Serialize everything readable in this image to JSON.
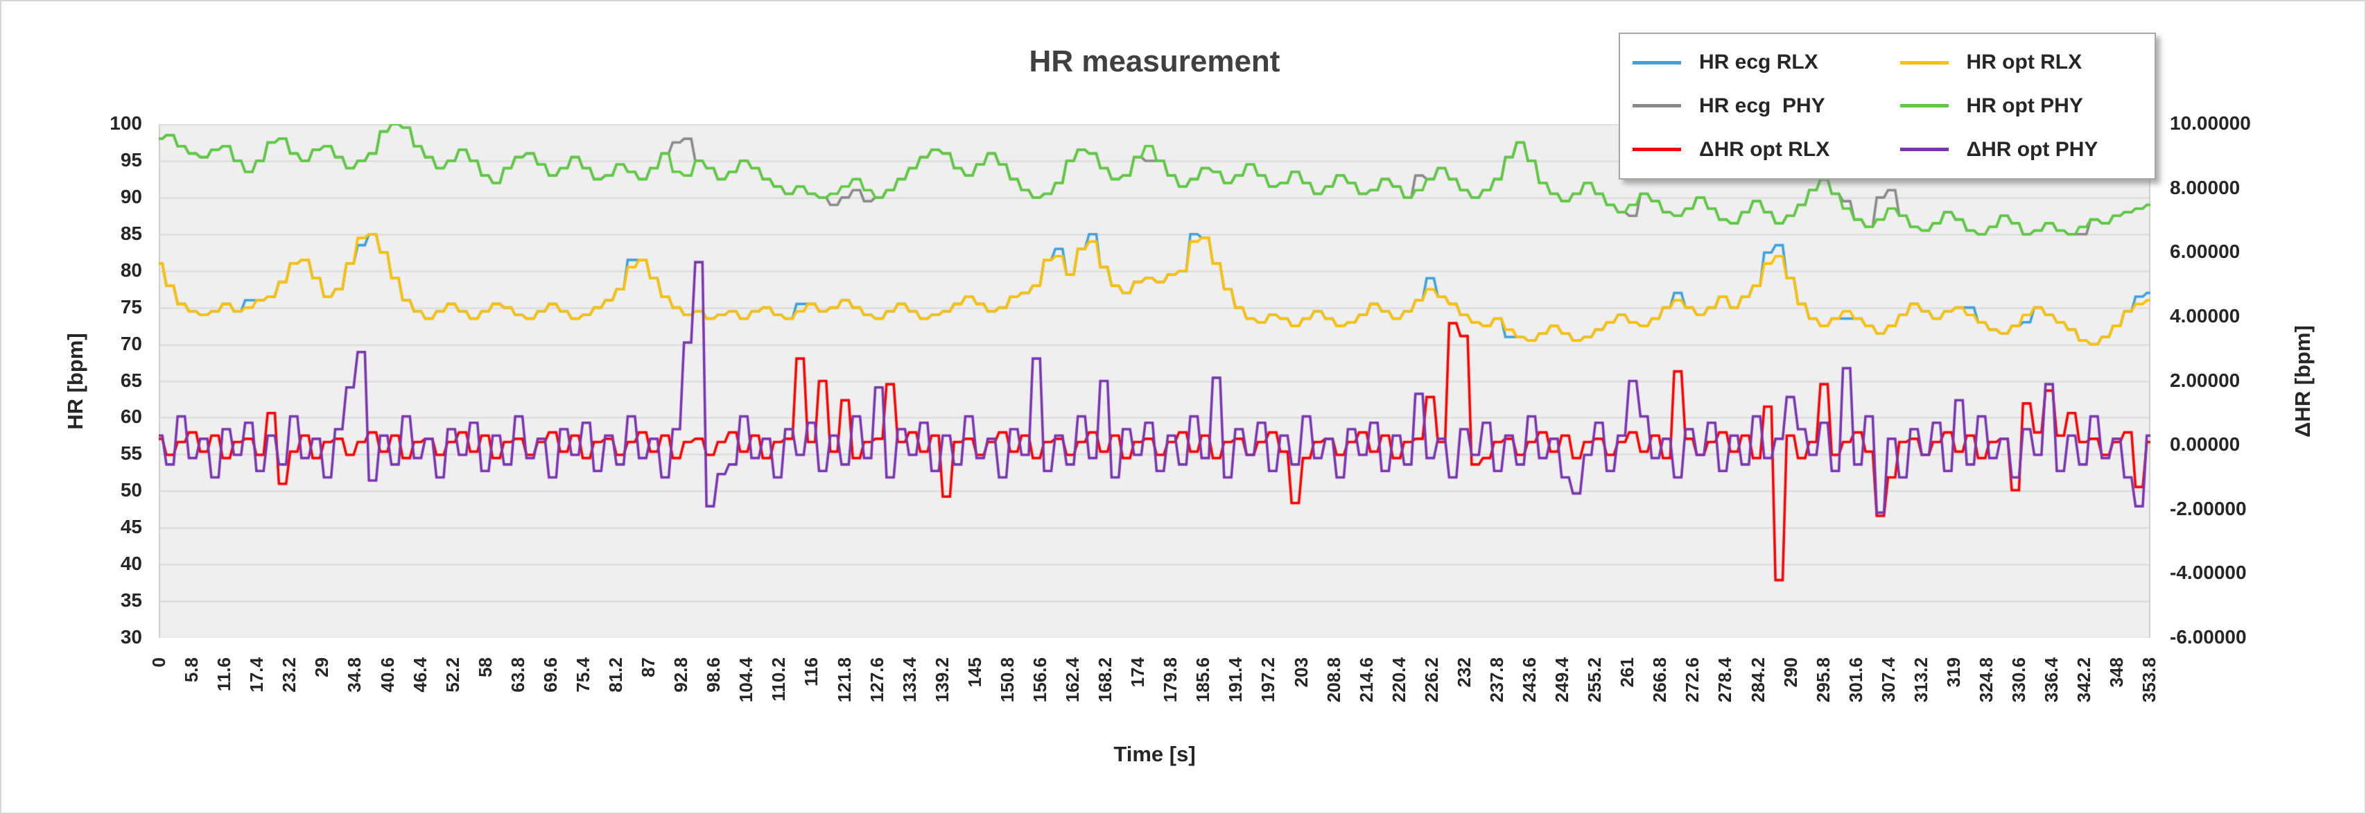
{
  "colors": {
    "plot_bg": "#efefef",
    "gridline": "#d9d9d9",
    "axis_edge": "#d0d0d0",
    "tick_text": "#262626",
    "title_text": "#404040"
  },
  "chart_data": {
    "type": "line",
    "title": "HR measurement",
    "xlabel": "Time [s]",
    "ylabel_left": "HR [bpm]",
    "ylabel_right": "ΔHR [bpm]",
    "x_range": [
      0,
      354
    ],
    "x_start": 0,
    "x_step": 2,
    "y_left_range": [
      30,
      100
    ],
    "y_right_range": [
      -6,
      10
    ],
    "grid": true,
    "legend_position": "top-right",
    "y_left_ticks": [
      100,
      95,
      90,
      85,
      80,
      75,
      70,
      65,
      60,
      55,
      50,
      45,
      40,
      35,
      30
    ],
    "y_right_ticks": [
      "10.00000",
      "8.00000",
      "6.00000",
      "4.00000",
      "2.00000",
      "0.00000",
      "-2.00000",
      "-4.00000",
      "-6.00000"
    ],
    "x_ticks": [
      "0",
      "5.8",
      "11.6",
      "17.4",
      "23.2",
      "29",
      "34.8",
      "40.6",
      "46.4",
      "52.2",
      "58",
      "63.8",
      "69.6",
      "75.4",
      "81.2",
      "87",
      "92.8",
      "98.6",
      "104.4",
      "110.2",
      "116",
      "121.8",
      "127.6",
      "133.4",
      "139.2",
      "145",
      "150.8",
      "156.6",
      "162.4",
      "168.2",
      "174",
      "179.8",
      "185.6",
      "191.4",
      "197.2",
      "203",
      "208.8",
      "214.6",
      "220.4",
      "226.2",
      "232",
      "237.8",
      "243.6",
      "249.4",
      "255.2",
      "261",
      "266.8",
      "272.6",
      "278.4",
      "284.2",
      "290",
      "295.8",
      "301.6",
      "307.4",
      "313.2",
      "319",
      "324.8",
      "330.6",
      "336.4",
      "342.2",
      "348",
      "353.8"
    ],
    "series": [
      {
        "name": "HR ecg RLX",
        "color": "#3da2dc",
        "axis": "left",
        "values": [
          81,
          78,
          75.5,
          74.5,
          74,
          74.5,
          75.5,
          74.5,
          76,
          76,
          76.5,
          78.5,
          81,
          81.5,
          79,
          76.5,
          77.5,
          81,
          83.5,
          85,
          82.5,
          79,
          76,
          74.5,
          73.5,
          74.5,
          75.5,
          74.5,
          73.5,
          74.5,
          75.5,
          75,
          74,
          73.5,
          74.5,
          75.5,
          74.5,
          73.5,
          74,
          75,
          76,
          77.5,
          81.5,
          81.5,
          79,
          76.5,
          75,
          74,
          74.5,
          73.5,
          74,
          74.5,
          73.5,
          74.5,
          75,
          74,
          73.5,
          75.5,
          75.5,
          74.5,
          75,
          76,
          75,
          74,
          73.5,
          74.5,
          75.5,
          74.5,
          73.5,
          74,
          74.5,
          75.5,
          76.5,
          75.5,
          74.5,
          75,
          76.5,
          77,
          78,
          81.5,
          83,
          79.5,
          83,
          85,
          80.5,
          78,
          77,
          78.5,
          79,
          78.5,
          79.5,
          80,
          85,
          84.5,
          81,
          77.5,
          75,
          73.5,
          73,
          74,
          73.5,
          72.5,
          73.5,
          74.5,
          73.5,
          72.5,
          73,
          74,
          75.5,
          74.5,
          73.5,
          74.5,
          76,
          79,
          76.5,
          75.5,
          74,
          73,
          72.5,
          73.5,
          71,
          71,
          70.5,
          71.5,
          72.5,
          71.5,
          70.5,
          71,
          72,
          73,
          74,
          73,
          72.5,
          73.5,
          75,
          77,
          75,
          74,
          75,
          76.5,
          75,
          76.5,
          78,
          82.5,
          83.5,
          79,
          75.5,
          73.5,
          72.5,
          73.5,
          73.5,
          73.5,
          72.5,
          71.5,
          72.5,
          74,
          75.5,
          74.5,
          73.5,
          74.5,
          75,
          75,
          73,
          72,
          71.5,
          72.5,
          73,
          75,
          74,
          73,
          72,
          70.5,
          70,
          71,
          72.5,
          74.5,
          76.5,
          77
        ]
      },
      {
        "name": "HR opt RLX",
        "color": "#ffc000",
        "axis": "left",
        "values": [
          81,
          78,
          75.5,
          74.5,
          74,
          74.5,
          75.5,
          74.5,
          75,
          76,
          76.5,
          78.5,
          81,
          81.5,
          79,
          76.5,
          77.5,
          81,
          84.5,
          85,
          82.5,
          79,
          76,
          74.5,
          73.5,
          74.5,
          75.5,
          74.5,
          73.5,
          74.5,
          75.5,
          75,
          74,
          73.5,
          74.5,
          75.5,
          74.5,
          73.5,
          74,
          75,
          76,
          77.5,
          80.5,
          81.5,
          79,
          76.5,
          75,
          74,
          74.5,
          73.5,
          74,
          74.5,
          73.5,
          74.5,
          75,
          74,
          73.5,
          74.5,
          75.5,
          74.5,
          75,
          76,
          75,
          74,
          73.5,
          74.5,
          75.5,
          74.5,
          73.5,
          74,
          74.5,
          75.5,
          76.5,
          75.5,
          74.5,
          75,
          76.5,
          77,
          78,
          81.5,
          82,
          79.5,
          83,
          84,
          80.5,
          78,
          77,
          78.5,
          79,
          78.5,
          79.5,
          80,
          84,
          84.5,
          81,
          77.5,
          75,
          73.5,
          73,
          74,
          73.5,
          72.5,
          73.5,
          74.5,
          73.5,
          72.5,
          73,
          74,
          75.5,
          74.5,
          73.5,
          74.5,
          76,
          77.5,
          76.5,
          75.5,
          74,
          73,
          72.5,
          73.5,
          72,
          71,
          70.5,
          71.5,
          72.5,
          71.5,
          70.5,
          71,
          72,
          73,
          74,
          73,
          72.5,
          73.5,
          75,
          76,
          75,
          74,
          75,
          76.5,
          75,
          76.5,
          78,
          81,
          82,
          79,
          75.5,
          73.5,
          72.5,
          73.5,
          74.5,
          73.5,
          72.5,
          71.5,
          72.5,
          74,
          75.5,
          74.5,
          73.5,
          74.5,
          75,
          74,
          73,
          72,
          71.5,
          72.5,
          74,
          75,
          74,
          73,
          72,
          70.5,
          70,
          71,
          72.5,
          74.5,
          75.5,
          76
        ]
      },
      {
        "name": "HR ecg  PHY",
        "color": "#8a8a8a",
        "axis": "left",
        "values": [
          98,
          98.5,
          97,
          96,
          95.5,
          96.5,
          97,
          95,
          93.5,
          95,
          97.5,
          98,
          96,
          95,
          96.5,
          97,
          95.5,
          94,
          95,
          96,
          99,
          100,
          99.5,
          97,
          95.5,
          94,
          95,
          96.5,
          95,
          93,
          92,
          94,
          95.5,
          96,
          94.5,
          93,
          94,
          95.5,
          94,
          92.5,
          93,
          94.5,
          93.5,
          92.5,
          94,
          96,
          97.5,
          98,
          95,
          94,
          92.5,
          93.5,
          95,
          94,
          92.5,
          91.5,
          90.5,
          91.5,
          90.5,
          90,
          89,
          90,
          91,
          89.5,
          90,
          91,
          92.5,
          94,
          95.5,
          96.5,
          96,
          94,
          93,
          94.5,
          96,
          94.5,
          92.5,
          91,
          90,
          90.5,
          92,
          95,
          96.5,
          96,
          94,
          92.5,
          93,
          95.5,
          95,
          95,
          93,
          91.5,
          92.5,
          94,
          93.5,
          92,
          93,
          94.5,
          93,
          91.5,
          92,
          93.5,
          92,
          90.5,
          91.5,
          93,
          92,
          90.5,
          91,
          92.5,
          91.5,
          90,
          93,
          92.5,
          94,
          92.5,
          91,
          90,
          91,
          92.5,
          95.5,
          97.5,
          95,
          92,
          90.5,
          89.5,
          90.5,
          92,
          90.5,
          89,
          88,
          87.5,
          90.5,
          89.5,
          88,
          87.5,
          88.5,
          90,
          88.5,
          87,
          86.5,
          88,
          89.5,
          88,
          86.5,
          87.5,
          89,
          91,
          92.5,
          90.5,
          89.5,
          87,
          86,
          90,
          91,
          87.5,
          86,
          85.5,
          86.5,
          88,
          87,
          85.5,
          85,
          86,
          87.5,
          86.5,
          85,
          85.5,
          86.5,
          85.5,
          85,
          85,
          87,
          86.5,
          87.5,
          88,
          88.5,
          89
        ]
      },
      {
        "name": "HR opt PHY",
        "color": "#5ccb3f",
        "axis": "left",
        "values": [
          98,
          98.5,
          97,
          96,
          95.5,
          96.5,
          97,
          95,
          93.5,
          95,
          97.5,
          98,
          96,
          95,
          96.5,
          97,
          95.5,
          94,
          95,
          96,
          99,
          100,
          99.5,
          97,
          95.5,
          94,
          95,
          96.5,
          95,
          93,
          92,
          94,
          95.5,
          96,
          94.5,
          93,
          94,
          95.5,
          94,
          92.5,
          93,
          94.5,
          93.5,
          92.5,
          94,
          96,
          93.5,
          93,
          95,
          94,
          92.5,
          93.5,
          95,
          94,
          92.5,
          91.5,
          90.5,
          91.5,
          90.5,
          90,
          90.5,
          91.5,
          92.5,
          91,
          90,
          91,
          92.5,
          94,
          95.5,
          96.5,
          96,
          94,
          93,
          94.5,
          96,
          94.5,
          92.5,
          91,
          90,
          90.5,
          92,
          95,
          96.5,
          96,
          94,
          92.5,
          93,
          95.5,
          97,
          95,
          93,
          91.5,
          92.5,
          94,
          93.5,
          92,
          93,
          94.5,
          93,
          91.5,
          92,
          93.5,
          92,
          90.5,
          91.5,
          93,
          92,
          90.5,
          91,
          92.5,
          91.5,
          90,
          91,
          92.5,
          94,
          92.5,
          91,
          90,
          91,
          92.5,
          95.5,
          97.5,
          95,
          92,
          90.5,
          89.5,
          90.5,
          92,
          90.5,
          89,
          88,
          89,
          90.5,
          89.5,
          88,
          87.5,
          88.5,
          90,
          88.5,
          87,
          86.5,
          88,
          89.5,
          88,
          86.5,
          87.5,
          89,
          91,
          92.5,
          90.5,
          88.5,
          87,
          86,
          87,
          88.5,
          87.5,
          86,
          85.5,
          86.5,
          88,
          87,
          85.5,
          85,
          86,
          87.5,
          86.5,
          85,
          85.5,
          86.5,
          85.5,
          85,
          86,
          87,
          86.5,
          87.5,
          88,
          88.5,
          89
        ]
      },
      {
        "name": "ΔHR opt RLX",
        "color": "#fe0000",
        "axis": "right",
        "values": [
          0.2,
          -0.3,
          0.1,
          0.4,
          -0.2,
          0.3,
          -0.4,
          0.1,
          0.2,
          -0.3,
          1.0,
          -1.2,
          -0.2,
          0.3,
          -0.4,
          0.1,
          0.2,
          -0.3,
          0.1,
          0.4,
          -0.2,
          0.3,
          -0.4,
          0.1,
          0.2,
          -0.3,
          0.1,
          0.4,
          -0.2,
          0.3,
          -0.4,
          0.1,
          0.2,
          -0.3,
          0.1,
          0.4,
          -0.2,
          0.3,
          -0.4,
          0.1,
          0.2,
          -0.3,
          0.1,
          0.4,
          -0.2,
          0.3,
          -0.4,
          0.1,
          0.2,
          -0.3,
          0.1,
          0.4,
          -0.2,
          0.3,
          -0.4,
          0.1,
          0.2,
          2.7,
          0.1,
          2.0,
          -0.2,
          1.4,
          -0.4,
          0.1,
          0.2,
          1.9,
          0.1,
          0.4,
          -0.2,
          0.3,
          -1.6,
          0.1,
          0.2,
          -0.3,
          0.1,
          0.4,
          -0.2,
          0.3,
          -0.4,
          0.1,
          0.2,
          -0.3,
          0.1,
          0.4,
          -0.2,
          0.3,
          -0.4,
          0.1,
          0.2,
          -0.3,
          0.1,
          0.4,
          -0.2,
          0.3,
          -0.4,
          0.1,
          0.2,
          -0.3,
          0.1,
          0.4,
          -0.2,
          -1.8,
          -0.4,
          0.1,
          0.2,
          -0.3,
          0.1,
          0.4,
          -0.2,
          0.3,
          -0.4,
          0.1,
          0.2,
          1.5,
          0.1,
          3.8,
          3.4,
          -0.6,
          -0.4,
          0.1,
          0.2,
          -0.3,
          0.1,
          0.4,
          -0.2,
          0.3,
          -0.4,
          0.1,
          0.2,
          -0.3,
          0.1,
          0.4,
          -0.2,
          0.3,
          -0.4,
          2.3,
          0.2,
          -0.3,
          0.1,
          0.4,
          -0.2,
          0.3,
          -0.4,
          1.2,
          -4.2,
          0.3,
          -0.4,
          0.1,
          1.9,
          -0.3,
          0.1,
          0.4,
          -0.2,
          -2.2,
          -1.0,
          0.1,
          0.2,
          -0.3,
          0.1,
          0.4,
          -0.2,
          0.3,
          -0.4,
          0.1,
          0.2,
          -1.4,
          1.3,
          0.4,
          1.7,
          0.3,
          1.0,
          0.1,
          0.2,
          -0.3,
          0.1,
          0.4,
          -1.3,
          0.1
        ]
      },
      {
        "name": "ΔHR opt PHY",
        "color": "#7a35b2",
        "axis": "right",
        "values": [
          0.3,
          -0.6,
          0.9,
          -0.4,
          0.2,
          -1.0,
          0.5,
          -0.3,
          0.7,
          -0.8,
          0.3,
          -0.6,
          0.9,
          -0.4,
          0.2,
          -1.0,
          0.5,
          1.8,
          2.9,
          -1.1,
          0.3,
          -0.6,
          0.9,
          -0.4,
          0.2,
          -1.0,
          0.5,
          -0.3,
          0.7,
          -0.8,
          0.3,
          -0.6,
          0.9,
          -0.4,
          0.2,
          -1.0,
          0.5,
          -0.3,
          0.7,
          -0.8,
          0.3,
          -0.6,
          0.9,
          -0.4,
          0.2,
          -1.0,
          0.5,
          3.2,
          5.7,
          -1.9,
          -0.9,
          -0.6,
          0.9,
          -0.4,
          0.2,
          -1.0,
          0.5,
          -0.3,
          0.7,
          -0.8,
          0.3,
          -0.6,
          0.9,
          -0.4,
          1.8,
          -1.0,
          0.5,
          -0.3,
          0.7,
          -0.8,
          0.3,
          -0.6,
          0.9,
          -0.4,
          0.2,
          -1.0,
          0.5,
          -0.3,
          2.7,
          -0.8,
          0.3,
          -0.6,
          0.9,
          -0.4,
          2.0,
          -1.0,
          0.5,
          -0.3,
          0.7,
          -0.8,
          0.3,
          -0.6,
          0.9,
          -0.4,
          2.1,
          -1.0,
          0.5,
          -0.3,
          0.7,
          -0.8,
          0.3,
          -0.6,
          0.9,
          -0.4,
          0.2,
          -1.0,
          0.5,
          -0.3,
          0.7,
          -0.8,
          0.3,
          -0.6,
          1.6,
          -0.4,
          0.2,
          -1.0,
          0.5,
          -0.3,
          0.7,
          -0.8,
          0.3,
          -0.6,
          0.9,
          -0.4,
          0.2,
          -1.0,
          -1.5,
          -0.3,
          0.7,
          -0.8,
          0.3,
          2.0,
          0.9,
          -0.4,
          0.2,
          -1.0,
          0.5,
          -0.3,
          0.7,
          -0.8,
          0.3,
          -0.6,
          0.9,
          -0.4,
          0.2,
          1.5,
          0.5,
          -0.3,
          0.7,
          -0.8,
          2.4,
          -0.6,
          0.9,
          -2.1,
          0.2,
          -1.0,
          0.5,
          -0.3,
          0.7,
          -0.8,
          1.4,
          -0.6,
          0.9,
          -0.4,
          0.2,
          -1.0,
          0.5,
          -0.3,
          1.9,
          -0.8,
          0.3,
          -0.6,
          0.9,
          -0.4,
          0.2,
          -1.0,
          -1.9,
          0.3
        ]
      }
    ]
  }
}
